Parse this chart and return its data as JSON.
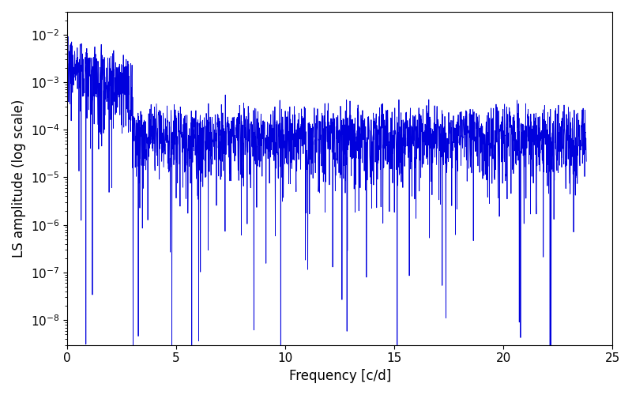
{
  "title": "",
  "xlabel": "Frequency [c/d]",
  "ylabel": "LS amplitude (log scale)",
  "xlim": [
    0,
    25
  ],
  "ylim": [
    3e-09,
    0.03
  ],
  "line_color": "#0000dd",
  "line_width": 0.6,
  "num_points": 2400,
  "seed": 7,
  "figsize": [
    8.0,
    5.0
  ],
  "dpi": 100,
  "background_color": "#ffffff",
  "tick_labelsize": 11,
  "axis_labelsize": 12,
  "freq_max_data": 23.8
}
